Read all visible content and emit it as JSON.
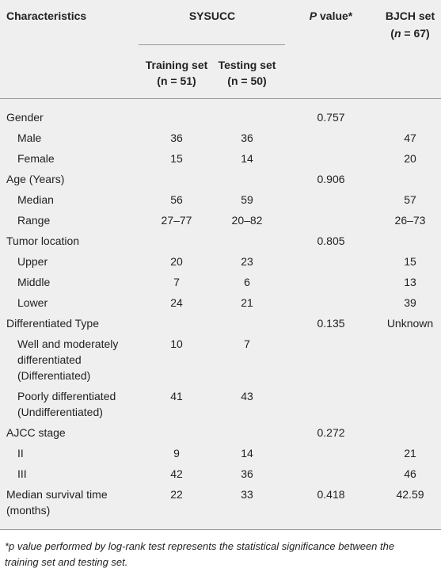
{
  "header": {
    "characteristics": "Characteristics",
    "sysucc": "SYSUCC",
    "training": [
      "Training set",
      "(n = 51)"
    ],
    "testing": [
      "Testing set",
      "(n = 50)"
    ],
    "p_value": [
      "P",
      " value*"
    ],
    "bjch": {
      "line1": "BJCH set",
      "line2": [
        "(",
        "n",
        " = 67)"
      ]
    }
  },
  "groups": [
    {
      "label": [
        "Gender"
      ],
      "training": null,
      "testing": null,
      "p_value": 0.757,
      "bjch": null,
      "items": [
        {
          "label": [
            "Male"
          ],
          "training": 36,
          "testing": 36,
          "bjch": 47
        },
        {
          "label": [
            "Female"
          ],
          "training": 15,
          "testing": 14,
          "bjch": 20
        }
      ]
    },
    {
      "label": [
        "Age (Years)"
      ],
      "training": null,
      "testing": null,
      "p_value": 0.906,
      "bjch": null,
      "items": [
        {
          "label": [
            "Median"
          ],
          "training": 56,
          "testing": 59,
          "bjch": 57
        },
        {
          "label": [
            "Range"
          ],
          "training": "27–77",
          "testing": "20–82",
          "bjch": "26–73"
        }
      ]
    },
    {
      "label": [
        "Tumor location"
      ],
      "training": null,
      "testing": null,
      "p_value": 0.805,
      "bjch": null,
      "items": [
        {
          "label": [
            "Upper"
          ],
          "training": 20,
          "testing": 23,
          "bjch": 15
        },
        {
          "label": [
            "Middle"
          ],
          "training": 7,
          "testing": 6,
          "bjch": 13
        },
        {
          "label": [
            "Lower"
          ],
          "training": 24,
          "testing": 21,
          "bjch": 39
        }
      ]
    },
    {
      "label": [
        "Differentiated Type"
      ],
      "training": null,
      "testing": null,
      "p_value": 0.135,
      "bjch": "Unknown",
      "items": [
        {
          "label": [
            "Well and moderately",
            "differentiated",
            "(Differentiated)"
          ],
          "training": 10,
          "testing": 7,
          "bjch": null
        },
        {
          "label": [
            "Poorly differentiated",
            "(Undifferentiated)"
          ],
          "training": 41,
          "testing": 43,
          "bjch": null
        }
      ]
    },
    {
      "label": [
        "AJCC stage"
      ],
      "training": null,
      "testing": null,
      "p_value": 0.272,
      "bjch": null,
      "items": [
        {
          "label": [
            "II"
          ],
          "training": 9,
          "testing": 14,
          "bjch": 21
        },
        {
          "label": [
            "III"
          ],
          "training": 42,
          "testing": 36,
          "bjch": 46
        }
      ]
    },
    {
      "label": [
        "Median survival time",
        "(months)"
      ],
      "training": 22,
      "testing": 33,
      "p_value": 0.418,
      "bjch": 42.59,
      "items": []
    }
  ],
  "footnote": [
    "*p value performed by log-rank test represents the statistical significance between the",
    "training set and testing set."
  ]
}
